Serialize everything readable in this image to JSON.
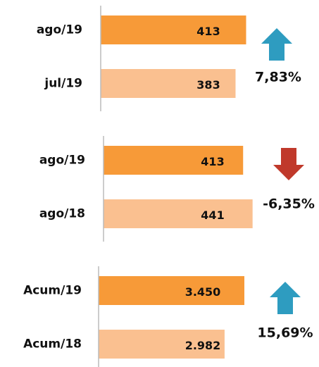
{
  "chart_data": [
    {
      "type": "bar",
      "orientation": "horizontal",
      "categories": [
        "ago/19",
        "jul/19"
      ],
      "values": [
        413,
        383
      ],
      "colors": [
        "#f79a38",
        "#fac090"
      ],
      "xlim": [
        0,
        480
      ],
      "annotation": "7,83%",
      "arrow": "up",
      "arrow_color": "#2e9cc0"
    },
    {
      "type": "bar",
      "orientation": "horizontal",
      "categories": [
        "ago/19",
        "ago/18"
      ],
      "values": [
        413,
        441
      ],
      "colors": [
        "#f79a38",
        "#fac090"
      ],
      "xlim": [
        0,
        500
      ],
      "annotation": "-6,35%",
      "arrow": "down",
      "arrow_color": "#c0392b"
    },
    {
      "type": "bar",
      "orientation": "horizontal",
      "categories": [
        "Acum/19",
        "Acum/18"
      ],
      "values": [
        3450,
        2982
      ],
      "value_labels": [
        "3.450",
        "2.982"
      ],
      "colors": [
        "#f79a38",
        "#fac090"
      ],
      "xlim": [
        0,
        4000
      ],
      "annotation": "15,69%",
      "arrow": "up",
      "arrow_color": "#2e9cc0"
    }
  ]
}
